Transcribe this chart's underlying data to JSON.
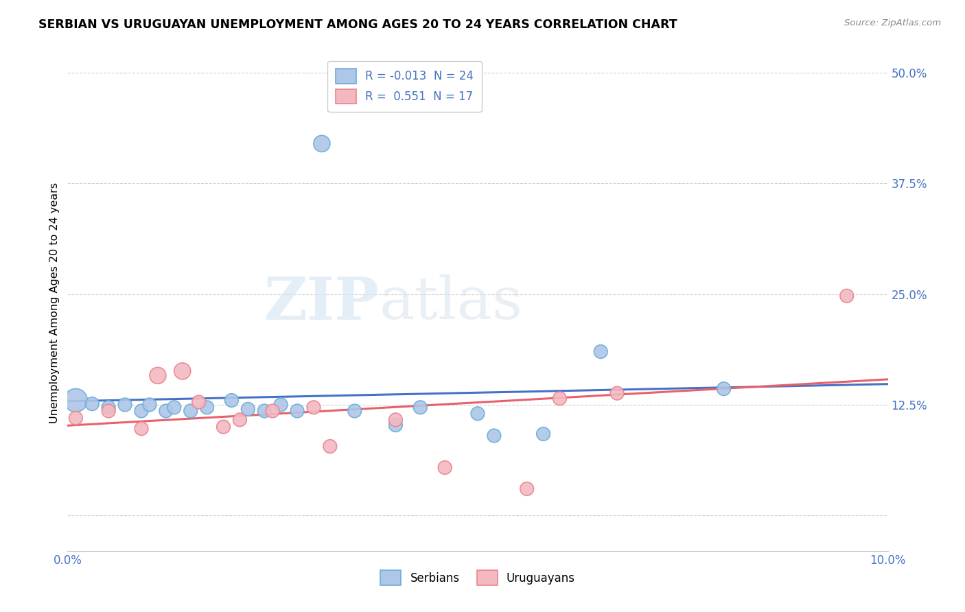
{
  "title": "SERBIAN VS URUGUAYAN UNEMPLOYMENT AMONG AGES 20 TO 24 YEARS CORRELATION CHART",
  "source": "Source: ZipAtlas.com",
  "ylabel": "Unemployment Among Ages 20 to 24 years",
  "xlim": [
    0.0,
    0.1
  ],
  "ylim": [
    -0.04,
    0.52
  ],
  "yticks": [
    0.0,
    0.125,
    0.25,
    0.375,
    0.5
  ],
  "ytick_labels": [
    "",
    "12.5%",
    "25.0%",
    "37.5%",
    "50.0%"
  ],
  "xticks": [
    0.0,
    0.02,
    0.04,
    0.06,
    0.08,
    0.1
  ],
  "xtick_labels": [
    "0.0%",
    "",
    "",
    "",
    "",
    "10.0%"
  ],
  "serbian_color": "#aec6e8",
  "uruguayan_color": "#f4b8c1",
  "serbian_edge": "#6aaed6",
  "uruguayan_edge": "#e8848f",
  "line_serbian_color": "#4472c4",
  "line_uruguayan_color": "#e8606b",
  "legend_serbian_label": "Serbians",
  "legend_uruguayan_label": "Uruguayans",
  "R_serbian": -0.013,
  "N_serbian": 24,
  "R_uruguayan": 0.551,
  "N_uruguayan": 17,
  "serbian_x": [
    0.001,
    0.003,
    0.005,
    0.007,
    0.009,
    0.01,
    0.012,
    0.013,
    0.015,
    0.017,
    0.02,
    0.022,
    0.024,
    0.026,
    0.028,
    0.031,
    0.035,
    0.04,
    0.043,
    0.05,
    0.052,
    0.058,
    0.065,
    0.08
  ],
  "serbian_y": [
    0.13,
    0.126,
    0.122,
    0.125,
    0.118,
    0.125,
    0.118,
    0.122,
    0.118,
    0.122,
    0.13,
    0.12,
    0.118,
    0.125,
    0.118,
    0.42,
    0.118,
    0.102,
    0.122,
    0.115,
    0.09,
    0.092,
    0.185,
    0.143
  ],
  "serbian_size": [
    600,
    200,
    200,
    200,
    200,
    200,
    200,
    200,
    200,
    200,
    200,
    200,
    200,
    200,
    200,
    300,
    200,
    200,
    200,
    200,
    200,
    200,
    200,
    200
  ],
  "uruguayan_x": [
    0.001,
    0.005,
    0.009,
    0.011,
    0.014,
    0.016,
    0.019,
    0.021,
    0.025,
    0.03,
    0.032,
    0.04,
    0.046,
    0.056,
    0.06,
    0.067,
    0.095
  ],
  "uruguayan_y": [
    0.11,
    0.118,
    0.098,
    0.158,
    0.163,
    0.128,
    0.1,
    0.108,
    0.118,
    0.122,
    0.078,
    0.108,
    0.054,
    0.03,
    0.132,
    0.138,
    0.248
  ],
  "uruguayan_size": [
    200,
    200,
    200,
    300,
    300,
    200,
    200,
    200,
    200,
    200,
    200,
    200,
    200,
    200,
    200,
    200,
    200
  ],
  "watermark_zip": "ZIP",
  "watermark_atlas": "atlas",
  "bg_color": "#ffffff",
  "grid_color": "#cccccc",
  "grid_style": "--"
}
